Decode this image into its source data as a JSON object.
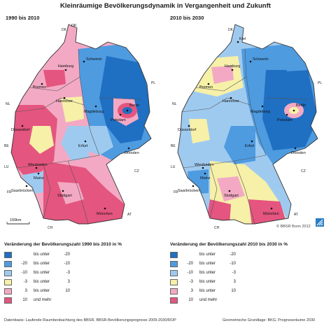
{
  "title": "Kleinräumige Bevölkerungsdynamik in Vergangenheit und Zukunft",
  "panels": [
    {
      "label": "1990 bis 2010",
      "cities": [
        "DK",
        "Hamburg",
        "Schwerin",
        "Bremen",
        "Hannover",
        "Berlin",
        "Potsdam",
        "Magdeburg",
        "Düsseldorf",
        "Erfurt",
        "Dresden",
        "Wiesbaden",
        "Mainz",
        "Saarbrücken",
        "Stuttgart",
        "München"
      ],
      "countries": [
        "DK",
        "NL",
        "BE",
        "LU",
        "FR",
        "CH",
        "AT",
        "CZ",
        "PL"
      ],
      "scale_bar": "100km"
    },
    {
      "label": "2010 bis 2030",
      "cities": [
        "Kiel",
        "Hamburg",
        "Schwerin",
        "Bremen",
        "Hannover",
        "Berlin",
        "Potsdam",
        "Magdeburg",
        "Düsseldorf",
        "Erfurt",
        "Dresden",
        "Wiesbaden",
        "Mainz",
        "Saarbrücken",
        "Stuttgart",
        "München"
      ],
      "countries": [
        "DK",
        "NL",
        "BE",
        "LU",
        "FR",
        "CH",
        "AT",
        "CZ",
        "PL"
      ]
    }
  ],
  "copyright": "© BBSR Bonn 2012",
  "legends": [
    {
      "title": "Veränderung der Bevölkerungszahl 1990 bis 2010 in %",
      "classes": [
        {
          "lo": "",
          "mid": "bis unter",
          "hi": "-20",
          "color": "#1f6fc2"
        },
        {
          "lo": "-20",
          "mid": "bis unter",
          "hi": "-10",
          "color": "#4e9be0"
        },
        {
          "lo": "-10",
          "mid": "bis unter",
          "hi": "-3",
          "color": "#9fcaf0"
        },
        {
          "lo": "-3",
          "mid": "bis unter",
          "hi": "3",
          "color": "#f6f0a8"
        },
        {
          "lo": "3",
          "mid": "bis unter",
          "hi": "10",
          "color": "#f3a9c3"
        },
        {
          "lo": "10",
          "mid": "und mehr",
          "hi": "",
          "color": "#e4557f"
        }
      ]
    },
    {
      "title": "Veränderung der Bevölkerungszahl 2010 bis 2030 in %",
      "classes": [
        {
          "lo": "",
          "mid": "bis unter",
          "hi": "-20",
          "color": "#1f6fc2"
        },
        {
          "lo": "-20",
          "mid": "bis unter",
          "hi": "-10",
          "color": "#4e9be0"
        },
        {
          "lo": "-10",
          "mid": "bis unter",
          "hi": "-3",
          "color": "#9fcaf0"
        },
        {
          "lo": "-3",
          "mid": "bis unter",
          "hi": "3",
          "color": "#f6f0a8"
        },
        {
          "lo": "3",
          "mid": "bis unter",
          "hi": "10",
          "color": "#f3a9c3"
        },
        {
          "lo": "10",
          "mid": "und mehr",
          "hi": "",
          "color": "#e4557f"
        }
      ]
    }
  ],
  "footer_left": "Datenbasis: Laufende Raumbeobachtung des BBSR, BBSR-Bevölkerungsprognose 2009-2030/ROP",
  "footer_right": "Geometrische Grundlage: BKG, Prognoseräume 2030"
}
